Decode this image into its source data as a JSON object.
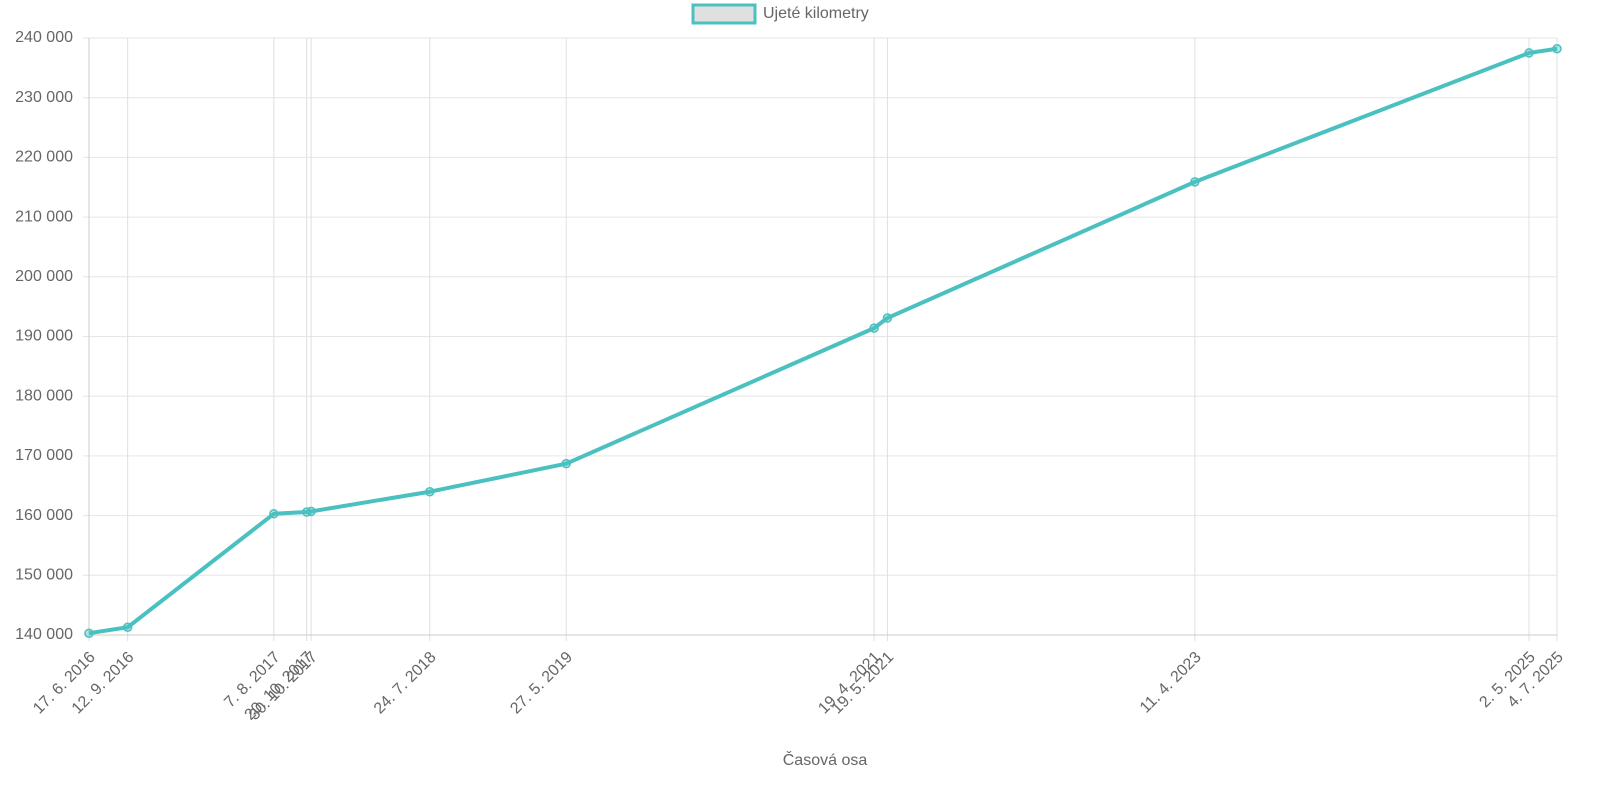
{
  "chart_data": {
    "type": "line",
    "x_title": "Časová osa",
    "x": [
      "17. 6. 2016",
      "12. 9. 2016",
      "7. 8. 2017",
      "20. 10. 2017",
      "30. 10. 2017",
      "24. 7. 2018",
      "27. 5. 2019",
      "19. 4. 2021",
      "19. 5. 2021",
      "11. 4. 2023",
      "2. 5. 2025",
      "4. 7. 2025"
    ],
    "series": [
      {
        "name": "Ujeté kilometry",
        "color": "#4bc0c0",
        "values": [
          140300,
          141300,
          160300,
          160600,
          160700,
          164000,
          168700,
          191400,
          193100,
          215900,
          237500,
          238200
        ]
      }
    ],
    "ylim": [
      140000,
      240000
    ],
    "yticks": [
      {
        "value": 140000,
        "label": "140 000"
      },
      {
        "value": 150000,
        "label": "150 000"
      },
      {
        "value": 160000,
        "label": "160 000"
      },
      {
        "value": 170000,
        "label": "170 000"
      },
      {
        "value": 180000,
        "label": "180 000"
      },
      {
        "value": 190000,
        "label": "190 000"
      },
      {
        "value": 200000,
        "label": "200 000"
      },
      {
        "value": 210000,
        "label": "210 000"
      },
      {
        "value": 220000,
        "label": "220 000"
      },
      {
        "value": 230000,
        "label": "230 000"
      },
      {
        "value": 240000,
        "label": "240 000"
      }
    ],
    "grid": true,
    "legend": "top"
  }
}
